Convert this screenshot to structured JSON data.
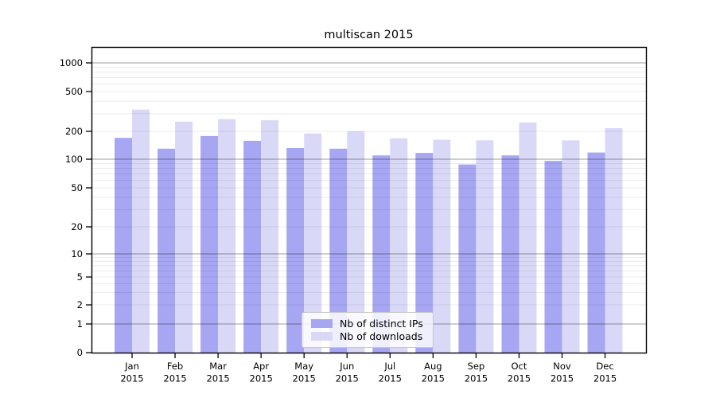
{
  "chart_data": {
    "type": "bar",
    "title": "multiscan 2015",
    "categories": [
      "Jan",
      "Feb",
      "Mar",
      "Apr",
      "May",
      "Jun",
      "Jul",
      "Aug",
      "Sep",
      "Oct",
      "Nov",
      "Dec"
    ],
    "category_sublabel": "2015",
    "series": [
      {
        "name": "Nb of distinct IPs",
        "color": "#a6a6f2",
        "values": [
          170,
          130,
          178,
          158,
          132,
          130,
          110,
          117,
          88,
          110,
          96,
          118
        ]
      },
      {
        "name": "Nb of downloads",
        "color": "#d9d9f7",
        "values": [
          330,
          250,
          265,
          258,
          190,
          200,
          168,
          162,
          160,
          245,
          160,
          215
        ]
      }
    ],
    "yscale": "symlog",
    "yticks": [
      0,
      1,
      2,
      5,
      10,
      20,
      50,
      100,
      200,
      500,
      1000
    ],
    "ylim": [
      0,
      1450
    ],
    "grid": true,
    "legend_position": "lower center",
    "colors": {
      "axis": "#000000",
      "major_grid": "#9b9b9b",
      "minor_grid": "#eaeaea",
      "background": "#ffffff"
    }
  }
}
